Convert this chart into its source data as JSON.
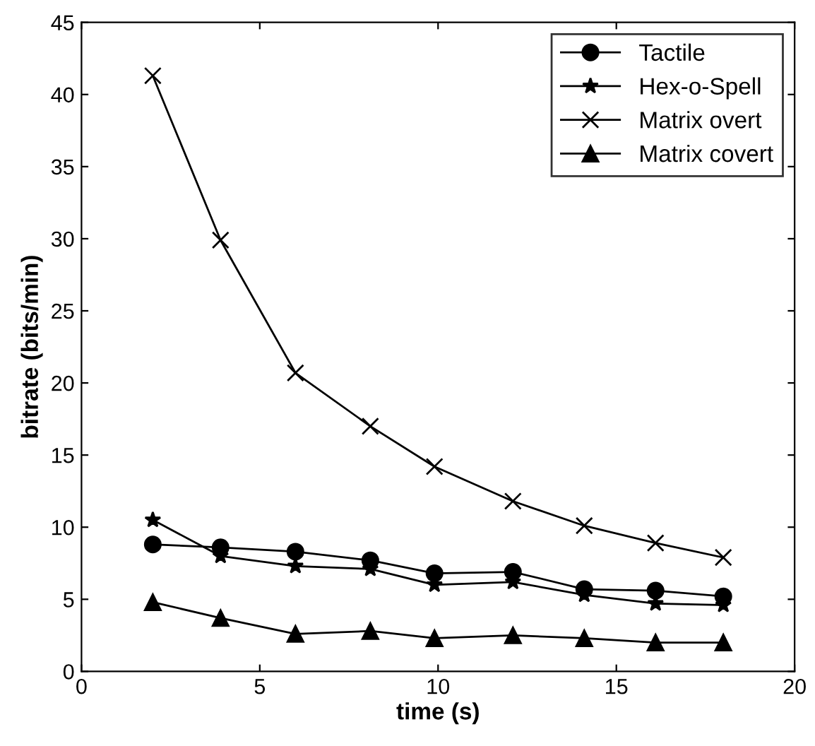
{
  "chart_data": {
    "type": "line",
    "xlabel": "time (s)",
    "ylabel": "bitrate (bits/min)",
    "x": [
      2,
      3.9,
      6,
      8.1,
      9.9,
      12.1,
      14.1,
      16.1,
      18
    ],
    "series": [
      {
        "name": "Tactile",
        "color": "#000000",
        "marker": "circle",
        "values": [
          8.8,
          8.6,
          8.3,
          7.7,
          6.8,
          6.9,
          5.7,
          5.6,
          5.2
        ]
      },
      {
        "name": "Hex-o-Spell",
        "color": "#000000",
        "marker": "star",
        "values": [
          10.5,
          8.0,
          7.3,
          7.1,
          6.0,
          6.2,
          5.3,
          4.7,
          4.6
        ]
      },
      {
        "name": "Matrix overt",
        "color": "#000000",
        "marker": "cross",
        "values": [
          41.3,
          29.9,
          20.7,
          17.0,
          14.2,
          11.8,
          10.1,
          8.9,
          7.9
        ]
      },
      {
        "name": "Matrix covert",
        "color": "#000000",
        "marker": "triangle",
        "values": [
          4.8,
          3.7,
          2.6,
          2.8,
          2.3,
          2.5,
          2.3,
          2.0,
          2.0
        ]
      }
    ],
    "xlim": [
      0,
      20
    ],
    "xticks": [
      0,
      5,
      10,
      15,
      20
    ],
    "ylim": [
      0,
      45
    ],
    "yticks": [
      0,
      5,
      10,
      15,
      20,
      25,
      30,
      35,
      40,
      45
    ],
    "grid": false,
    "legend": "top right",
    "line_style": "solid"
  }
}
